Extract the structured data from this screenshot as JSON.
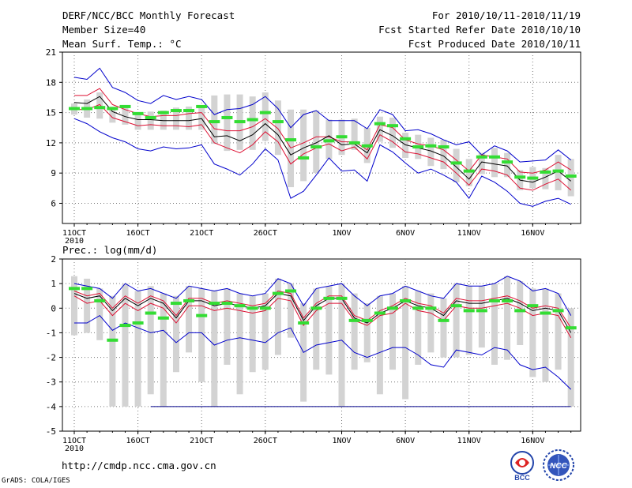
{
  "header": {
    "title": "DERF/NCC/BCC Monthly Forecast",
    "member_size": "Member Size=40",
    "variable": "Mean Surf. Temp.: °C",
    "period": "For 2010/10/11-2010/11/19",
    "start_date": "Fcst Started Refer Date 2010/10/10",
    "produced_date": "Fcst Produced Date 2010/10/11"
  },
  "footer": {
    "url": "http://cmdp.ncc.cma.gov.cn",
    "grads": "GrADS: COLA/IGES",
    "logo_left": "BCC",
    "logo_right": "NCC"
  },
  "colors": {
    "envelope": "#0000cc",
    "spread": "#dd1133",
    "mean": "#000000",
    "observed": "#33dd33",
    "box": "#d3d3d3",
    "grid": "#777777"
  },
  "chart_data": [
    {
      "type": "line",
      "title": "Mean Surf. Temp.: °C",
      "ylim": [
        4,
        21
      ],
      "yticks": [
        6,
        9,
        12,
        15,
        18,
        21
      ],
      "x_days": [
        0,
        1,
        2,
        3,
        4,
        5,
        6,
        7,
        8,
        9,
        10,
        11,
        12,
        13,
        14,
        15,
        16,
        17,
        18,
        19,
        20,
        21,
        22,
        23,
        24,
        25,
        26,
        27,
        28,
        29,
        30,
        31,
        32,
        33,
        34,
        35,
        36,
        37,
        38,
        39
      ],
      "xticks": [
        {
          "day": 0,
          "label": "11OCT",
          "sub": "2010"
        },
        {
          "day": 5,
          "label": "16OCT"
        },
        {
          "day": 10,
          "label": "21OCT"
        },
        {
          "day": 15,
          "label": "26OCT"
        },
        {
          "day": 21,
          "label": "1NOV"
        },
        {
          "day": 26,
          "label": "6NOV"
        },
        {
          "day": 31,
          "label": "11NOV"
        },
        {
          "day": 36,
          "label": "16NOV"
        }
      ],
      "series": [
        {
          "name": "ensemble max",
          "values": [
            18.5,
            18.3,
            19.4,
            17.5,
            17.0,
            16.2,
            15.9,
            16.7,
            16.3,
            16.6,
            16.3,
            14.8,
            15.3,
            15.4,
            15.8,
            16.6,
            15.4,
            13.5,
            14.8,
            15.2,
            14.2,
            14.2,
            14.2,
            13.4,
            15.3,
            14.8,
            13.2,
            13.3,
            12.9,
            12.3,
            11.8,
            12.1,
            10.8,
            11.7,
            11.2,
            10.1,
            10.2,
            10.3,
            11.3,
            10.3
          ]
        },
        {
          "name": "spread upper",
          "values": [
            16.7,
            16.7,
            17.4,
            15.8,
            15.3,
            14.9,
            14.6,
            14.7,
            14.7,
            14.9,
            15.0,
            13.4,
            13.2,
            13.2,
            13.6,
            14.4,
            13.4,
            11.5,
            12.0,
            12.6,
            12.6,
            12.1,
            12.1,
            11.3,
            13.8,
            13.5,
            12.3,
            11.9,
            11.7,
            11.3,
            10.3,
            9.2,
            10.8,
            10.6,
            10.4,
            9.1,
            9.0,
            9.3,
            10.1,
            9.3
          ]
        },
        {
          "name": "ensemble mean",
          "values": [
            16.0,
            15.9,
            16.6,
            15.1,
            14.6,
            14.3,
            14.3,
            14.2,
            14.2,
            14.2,
            14.4,
            12.6,
            12.7,
            12.2,
            12.8,
            13.9,
            12.8,
            10.8,
            11.5,
            12.0,
            12.7,
            11.8,
            11.9,
            11.0,
            13.3,
            12.7,
            11.8,
            11.5,
            11.2,
            10.7,
            9.6,
            8.4,
            10.1,
            9.9,
            9.7,
            8.3,
            8.1,
            8.6,
            9.2,
            8.2
          ]
        },
        {
          "name": "spread lower",
          "values": [
            15.3,
            15.3,
            15.8,
            14.5,
            14.1,
            13.7,
            13.8,
            13.7,
            13.7,
            13.6,
            13.8,
            12.0,
            11.5,
            11.0,
            11.8,
            13.1,
            12.1,
            9.9,
            10.9,
            11.5,
            11.9,
            11.2,
            11.6,
            10.4,
            12.8,
            12.1,
            11.1,
            10.9,
            10.5,
            10.1,
            9.0,
            7.8,
            9.4,
            9.2,
            8.8,
            7.5,
            7.3,
            7.9,
            8.4,
            7.3
          ]
        },
        {
          "name": "ensemble min",
          "values": [
            14.4,
            13.9,
            13.1,
            12.5,
            12.1,
            11.4,
            11.2,
            11.6,
            11.4,
            11.5,
            11.8,
            9.9,
            9.4,
            8.8,
            9.9,
            11.4,
            10.3,
            6.5,
            7.2,
            8.8,
            10.5,
            9.2,
            9.3,
            8.2,
            11.8,
            11.1,
            10.0,
            9.0,
            9.4,
            8.8,
            8.1,
            6.5,
            8.7,
            8.1,
            7.2,
            6.0,
            5.7,
            6.2,
            6.5,
            5.9
          ]
        },
        {
          "name": "observed",
          "values": [
            15.4,
            15.4,
            15.5,
            15.4,
            15.6,
            14.9,
            14.5,
            15.0,
            15.2,
            15.2,
            15.6,
            14.1,
            14.5,
            14.1,
            14.3,
            15.0,
            14.1,
            12.3,
            10.5,
            11.6,
            12.2,
            12.6,
            12.0,
            11.7,
            13.9,
            13.7,
            12.4,
            11.6,
            11.7,
            11.6,
            10.0,
            9.2,
            10.6,
            10.6,
            10.1,
            8.6,
            8.5,
            9.1,
            9.2,
            8.7
          ]
        }
      ],
      "boxes": {
        "top": [
          15.9,
          16.3,
          17.0,
          15.6,
          15.6,
          15.0,
          15.1,
          15.2,
          15.5,
          15.6,
          15.6,
          16.7,
          16.8,
          16.8,
          16.6,
          17.0,
          16.2,
          15.3,
          15.3,
          15.2,
          14.3,
          14.3,
          14.4,
          13.5,
          14.6,
          14.5,
          13.0,
          12.8,
          12.5,
          12.3,
          11.4,
          10.4,
          11.0,
          11.5,
          11.0,
          9.3,
          9.6,
          9.5,
          10.8,
          10.4
        ],
        "bottom": [
          14.8,
          14.5,
          14.4,
          14.0,
          13.8,
          13.3,
          13.3,
          13.3,
          13.3,
          13.3,
          13.3,
          11.9,
          11.2,
          11.3,
          11.3,
          12.2,
          10.8,
          7.6,
          8.2,
          9.0,
          10.4,
          10.8,
          11.3,
          10.0,
          12.1,
          11.5,
          10.5,
          10.4,
          9.7,
          9.4,
          8.1,
          7.7,
          8.9,
          8.6,
          8.6,
          7.3,
          7.5,
          7.4,
          7.3,
          6.7
        ]
      }
    },
    {
      "type": "line",
      "title": "Prec.: log(mm/d)",
      "ylim": [
        -5,
        2
      ],
      "yticks": [
        -5,
        -4,
        -3,
        -2,
        -1,
        0,
        1,
        2
      ],
      "x_days": [
        0,
        1,
        2,
        3,
        4,
        5,
        6,
        7,
        8,
        9,
        10,
        11,
        12,
        13,
        14,
        15,
        16,
        17,
        18,
        19,
        20,
        21,
        22,
        23,
        24,
        25,
        26,
        27,
        28,
        29,
        30,
        31,
        32,
        33,
        34,
        35,
        36,
        37,
        38,
        39
      ],
      "xticks": [
        {
          "day": 0,
          "label": "11OCT",
          "sub": "2010"
        },
        {
          "day": 5,
          "label": "16OCT"
        },
        {
          "day": 10,
          "label": "21OCT"
        },
        {
          "day": 15,
          "label": "26OCT"
        },
        {
          "day": 21,
          "label": "1NOV"
        },
        {
          "day": 26,
          "label": "6NOV"
        },
        {
          "day": 31,
          "label": "11NOV"
        },
        {
          "day": 36,
          "label": "16NOV"
        }
      ],
      "series": [
        {
          "name": "ensemble max",
          "values": [
            1.0,
            0.9,
            0.8,
            0.4,
            1.0,
            0.7,
            0.8,
            0.6,
            0.4,
            0.9,
            0.8,
            0.7,
            0.8,
            0.6,
            0.5,
            0.6,
            1.2,
            1.0,
            0.1,
            0.8,
            0.9,
            1.0,
            0.5,
            0.1,
            0.5,
            0.6,
            0.9,
            0.7,
            0.5,
            0.4,
            1.0,
            0.9,
            0.9,
            1.0,
            1.3,
            1.1,
            0.7,
            0.8,
            0.6,
            -0.3
          ]
        },
        {
          "name": "spread upper",
          "values": [
            0.7,
            0.5,
            0.6,
            0.0,
            0.5,
            0.2,
            0.5,
            0.3,
            -0.3,
            0.4,
            0.4,
            0.2,
            0.3,
            0.2,
            0.1,
            0.2,
            0.7,
            0.6,
            -0.4,
            0.2,
            0.5,
            0.5,
            -0.3,
            -0.5,
            -0.1,
            0.1,
            0.4,
            0.2,
            0.1,
            -0.2,
            0.4,
            0.3,
            0.3,
            0.4,
            0.5,
            0.3,
            0.0,
            0.1,
            0.0,
            -0.8
          ]
        },
        {
          "name": "ensemble mean",
          "values": [
            0.6,
            0.4,
            0.5,
            -0.1,
            0.4,
            0.1,
            0.4,
            0.2,
            -0.4,
            0.3,
            0.3,
            0.1,
            0.2,
            0.1,
            0.0,
            0.1,
            0.6,
            0.5,
            -0.5,
            0.1,
            0.4,
            0.4,
            -0.4,
            -0.6,
            -0.2,
            0.0,
            0.3,
            0.1,
            0.0,
            -0.3,
            0.3,
            0.2,
            0.2,
            0.3,
            0.4,
            0.2,
            -0.1,
            0.0,
            -0.1,
            -1.0
          ]
        },
        {
          "name": "spread lower",
          "values": [
            0.5,
            0.2,
            0.3,
            -0.3,
            0.2,
            -0.1,
            0.2,
            0.0,
            -0.6,
            0.1,
            0.1,
            -0.1,
            0.0,
            -0.1,
            -0.2,
            -0.1,
            0.4,
            0.3,
            -0.7,
            -0.1,
            0.2,
            0.2,
            -0.5,
            -0.7,
            -0.3,
            -0.2,
            0.2,
            -0.1,
            -0.2,
            -0.5,
            0.1,
            0.0,
            0.0,
            0.1,
            0.2,
            0.0,
            -0.3,
            -0.2,
            -0.3,
            -1.2
          ]
        },
        {
          "name": "ensemble min",
          "values": [
            -0.6,
            -0.6,
            -0.3,
            -0.9,
            -0.6,
            -0.8,
            -1.0,
            -0.9,
            -1.4,
            -1.0,
            -1.0,
            -1.5,
            -1.3,
            -1.2,
            -1.3,
            -1.4,
            -1.0,
            -0.8,
            -1.8,
            -1.5,
            -1.4,
            -1.3,
            -1.8,
            -2.0,
            -1.8,
            -1.6,
            -1.6,
            -1.9,
            -2.3,
            -2.4,
            -1.7,
            -1.8,
            -1.9,
            -1.6,
            -1.7,
            -2.3,
            -2.5,
            -2.4,
            -2.8,
            -3.3
          ]
        },
        {
          "name": "observed",
          "values": [
            0.8,
            0.8,
            0.3,
            -1.3,
            -0.7,
            -0.6,
            -0.2,
            -0.4,
            0.2,
            0.3,
            -0.3,
            0.2,
            0.2,
            0.1,
            0.0,
            0.0,
            0.6,
            0.7,
            -0.6,
            0.0,
            0.4,
            0.4,
            -0.5,
            -0.5,
            -0.2,
            0.0,
            0.3,
            0.0,
            0.0,
            -0.5,
            0.1,
            -0.1,
            -0.1,
            0.3,
            0.3,
            -0.1,
            0.1,
            -0.2,
            -0.1,
            -0.8
          ]
        }
      ],
      "boxes": {
        "top": [
          1.3,
          1.2,
          0.8,
          0.5,
          1.0,
          0.7,
          0.9,
          0.6,
          0.5,
          0.9,
          0.8,
          0.7,
          0.8,
          0.6,
          0.5,
          0.6,
          1.2,
          1.0,
          0.2,
          0.8,
          0.9,
          1.0,
          0.6,
          0.2,
          0.5,
          0.6,
          0.9,
          0.7,
          0.6,
          0.4,
          1.0,
          0.9,
          0.9,
          1.0,
          1.3,
          1.1,
          0.8,
          0.8,
          0.6,
          0.0
        ],
        "bottom": [
          -1.1,
          -1.0,
          -1.3,
          -4.0,
          -4.0,
          -4.0,
          -3.5,
          -4.0,
          -2.6,
          -1.8,
          -3.0,
          -4.0,
          -2.3,
          -3.5,
          -2.6,
          -2.5,
          -1.9,
          -1.2,
          -3.8,
          -2.5,
          -2.7,
          -4.0,
          -2.5,
          -2.2,
          -3.5,
          -2.5,
          -3.7,
          -2.3,
          -1.8,
          -2.0,
          -2.0,
          -1.9,
          -1.6,
          -2.3,
          -2.1,
          -1.5,
          -2.8,
          -3.0,
          -2.5,
          -4.0
        ]
      },
      "floor_line": -4
    }
  ]
}
